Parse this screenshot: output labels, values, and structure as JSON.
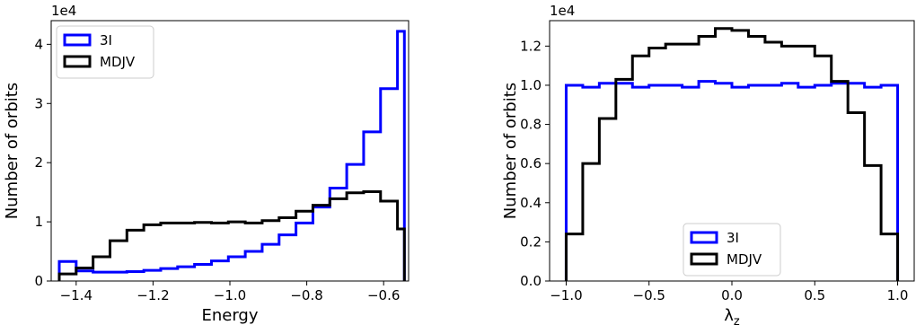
{
  "chart_data": [
    {
      "type": "histogram",
      "xlabel": "Energy",
      "ylabel": "Number of orbits",
      "offset_label": "1e4",
      "xlim": [
        -1.465,
        -0.535
      ],
      "ylim": [
        0,
        4.4
      ],
      "xticks": [
        -1.4,
        -1.2,
        -1.0,
        -0.8,
        -0.6
      ],
      "xtick_labels": [
        "−1.4",
        "−1.2",
        "−1.0",
        "−0.8",
        "−0.6"
      ],
      "yticks": [
        0,
        1,
        2,
        3,
        4
      ],
      "ytick_labels": [
        "0",
        "1",
        "2",
        "3",
        "4"
      ],
      "legend_position": "upper-left",
      "bin_edges": [
        -1.444,
        -1.4,
        -1.356,
        -1.312,
        -1.268,
        -1.224,
        -1.18,
        -1.136,
        -1.092,
        -1.048,
        -1.004,
        -0.96,
        -0.916,
        -0.872,
        -0.828,
        -0.784,
        -0.74,
        -0.696,
        -0.652,
        -0.608,
        -0.564,
        -0.546
      ],
      "series": [
        {
          "name": "3I",
          "color": "#0000ff",
          "values": [
            0.33,
            0.17,
            0.15,
            0.15,
            0.16,
            0.18,
            0.21,
            0.24,
            0.28,
            0.34,
            0.41,
            0.5,
            0.62,
            0.78,
            0.98,
            1.25,
            1.57,
            1.97,
            2.52,
            3.25,
            4.22
          ]
        },
        {
          "name": "MDJV",
          "color": "#000000",
          "values": [
            0.12,
            0.22,
            0.41,
            0.68,
            0.86,
            0.95,
            0.98,
            0.98,
            0.99,
            0.98,
            1.0,
            0.98,
            1.02,
            1.07,
            1.18,
            1.28,
            1.39,
            1.49,
            1.51,
            1.35,
            0.88
          ]
        }
      ]
    },
    {
      "type": "histogram",
      "xlabel": "λz",
      "ylabel": "Number of orbits",
      "offset_label": "1e4",
      "xlim": [
        -1.1,
        1.1
      ],
      "ylim": [
        0,
        1.33
      ],
      "xticks": [
        -1.0,
        -0.5,
        0.0,
        0.5,
        1.0
      ],
      "xtick_labels": [
        "−1.0",
        "−0.5",
        "0.0",
        "0.5",
        "1.0"
      ],
      "yticks": [
        0,
        0.2,
        0.4,
        0.6,
        0.8,
        1.0,
        1.2
      ],
      "ytick_labels": [
        "0.0",
        "0.2",
        "0.4",
        "0.6",
        "0.8",
        "1.0",
        "1.2"
      ],
      "legend_position": "lower-center",
      "bin_edges": [
        -1.0,
        -0.9,
        -0.8,
        -0.7,
        -0.6,
        -0.5,
        -0.4,
        -0.3,
        -0.2,
        -0.1,
        0.0,
        0.1,
        0.2,
        0.3,
        0.4,
        0.5,
        0.6,
        0.7,
        0.8,
        0.9,
        1.0
      ],
      "series": [
        {
          "name": "3I",
          "color": "#0000ff",
          "values": [
            1.0,
            0.99,
            1.01,
            1.01,
            0.99,
            1.0,
            1.0,
            0.99,
            1.02,
            1.01,
            0.99,
            1.0,
            1.0,
            1.01,
            0.99,
            1.0,
            1.01,
            1.01,
            0.99,
            1.0
          ]
        },
        {
          "name": "MDJV",
          "color": "#000000",
          "values": [
            0.24,
            0.6,
            0.83,
            1.03,
            1.15,
            1.19,
            1.21,
            1.21,
            1.25,
            1.29,
            1.28,
            1.25,
            1.22,
            1.2,
            1.2,
            1.15,
            1.02,
            0.86,
            0.59,
            0.24
          ]
        }
      ]
    }
  ]
}
